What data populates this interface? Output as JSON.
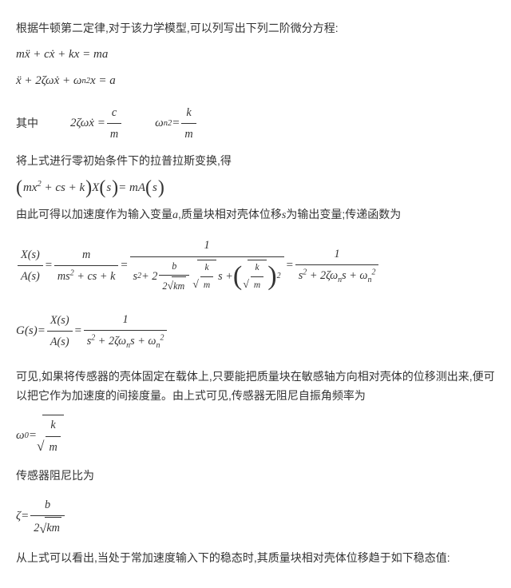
{
  "p1": "根据牛顿第二定律,对于该力学模型,可以列写出下列二阶微分方程:",
  "eq1": "mẍ + cẋ + kx = ma",
  "eq2_lhs": "ẍ + 2ζωẋ + ω",
  "eq2_sub": "n",
  "eq2_sup": "2",
  "eq2_rhs": "x = a",
  "where_label": "其中",
  "where_a_lhs": "2ζωẋ =",
  "where_a_num": "c",
  "where_a_den": "m",
  "where_b_lhs_sym": "ω",
  "where_b_lhs_sub": "n",
  "where_b_lhs_sup": "2",
  "where_b_eq": " =",
  "where_b_num": "k",
  "where_b_den": "m",
  "p2": "将上式进行零初始条件下的拉普拉斯变换,得",
  "eq3_inner": "mx",
  "eq3_sup2": "2",
  "eq3_rest1": " + cs + k",
  "eq3_mid": " X",
  "eq3_s": "s",
  "eq3_eq": " = mA",
  "p3_a": "由此可得以加速度作为输入变量",
  "p3_var_a": "a",
  "p3_b": ",质量块相对壳体位移",
  "p3_var_s": "s",
  "p3_c": "为输出变量;传递函数为",
  "tf_Xs": "X",
  "tf_As": "A",
  "tf_s": "s",
  "tf_eq": " = ",
  "tf_num1": "m",
  "tf_den1a": "ms",
  "tf_den1b": " + cs + k",
  "tf_num2": "1",
  "tf_den2a": "s",
  "tf_den2b": " + 2",
  "tf_den2_bnum": "b",
  "tf_den2_bden_2": "2",
  "tf_den2_bden_km": "km",
  "tf_den2_km_num": "k",
  "tf_den2_km_den": "m",
  "tf_den2_s": " s + ",
  "tf_num3": "1",
  "tf_den3a": "s",
  "tf_den3b": " + 2ζω",
  "tf_den3_n": "n",
  "tf_den3_c": "s + ω",
  "eqG_lhs": "G",
  "eqG_s": "s",
  "p4": "可见,如果将传感器的壳体固定在载体上,只要能把质量块在敏感轴方向相对壳体的位移测出来,便可以把它作为加速度的间接度量。由上式可见,传感器无阻尼自振角频率为",
  "omega0_sym": "ω",
  "omega0_sub": "0",
  "omega0_eq": " = ",
  "omega0_num": "k",
  "omega0_den": "m",
  "p5": "传感器阻尼比为",
  "zeta_sym": "ζ",
  "zeta_eq": " = ",
  "zeta_num": "b",
  "zeta_den_2": "2",
  "zeta_den_km": "km",
  "p6": "从上式可以看出,当处于常加速度输入下的稳态时,其质量块相对壳体位移趋于如下稳态值:"
}
